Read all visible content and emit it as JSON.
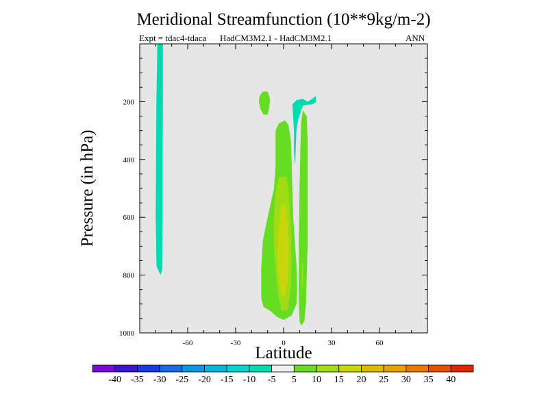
{
  "chart_data": {
    "type": "contour",
    "title": "Meridional Streamfunction (10**9kg/m-2)",
    "subtitle_left": "Expt = tdac4-tdaca",
    "subtitle_center": "HadCM3M2.1 - HadCM3M2.1",
    "subtitle_right": "ANN",
    "xlabel": "Latitude",
    "ylabel": "Pressure (in hPa)",
    "xlim": [
      -90,
      90
    ],
    "ylim": [
      1000,
      0
    ],
    "x_ticks": [
      "-60",
      "-30",
      "0",
      "30",
      "60"
    ],
    "x_tick_values": [
      -60,
      -30,
      0,
      30,
      60
    ],
    "y_ticks": [
      "200",
      "400",
      "600",
      "800",
      "1000"
    ],
    "y_tick_values": [
      200,
      400,
      600,
      800,
      1000
    ],
    "background_color": "#e6e6e6",
    "colorbar": {
      "labels": [
        "-40",
        "-35",
        "-30",
        "-25",
        "-20",
        "-15",
        "-10",
        "-5",
        "5",
        "10",
        "15",
        "20",
        "25",
        "30",
        "35",
        "40"
      ],
      "colors": [
        "#7a0ad8",
        "#3a16cc",
        "#1a3ae0",
        "#1a6ae6",
        "#0e98e2",
        "#08b4dc",
        "#0ad2d0",
        "#00dcb0",
        "#eeeeee",
        "#66dd22",
        "#a0dc14",
        "#c8d60a",
        "#dcbc00",
        "#e8a000",
        "#e87a00",
        "#e45000",
        "#dc2800"
      ]
    },
    "regions": [
      {
        "name": "neg-band-southern-high-lat",
        "level": "-10 to -5",
        "color": "#00dcb0",
        "points": [
          [
            -79,
            0
          ],
          [
            -75.5,
            0
          ],
          [
            -75.5,
            200
          ],
          [
            -75.7,
            400
          ],
          [
            -75.7,
            600
          ],
          [
            -76,
            780
          ],
          [
            -77,
            800
          ],
          [
            -79.5,
            770
          ],
          [
            -80,
            600
          ],
          [
            -79.8,
            400
          ],
          [
            -79.6,
            200
          ]
        ]
      },
      {
        "name": "neg-core-upper-tropics",
        "level": "-10 to -5",
        "color": "#00dcb0",
        "points": [
          [
            5.5,
            210
          ],
          [
            8,
            195
          ],
          [
            12,
            190
          ],
          [
            15,
            200
          ],
          [
            18,
            190
          ],
          [
            20,
            180
          ],
          [
            20.5,
            200
          ],
          [
            18,
            210
          ],
          [
            15,
            210
          ],
          [
            12,
            215
          ],
          [
            11,
            230
          ],
          [
            9,
            265
          ],
          [
            8,
            300
          ],
          [
            7.5,
            380
          ],
          [
            7,
            420
          ],
          [
            6.5,
            370
          ],
          [
            6.5,
            300
          ]
        ]
      },
      {
        "name": "pos-patch-upper-south",
        "level": "5 to 10",
        "color": "#66dd22",
        "points": [
          [
            -15,
            180
          ],
          [
            -13,
            165
          ],
          [
            -10,
            165
          ],
          [
            -8.5,
            190
          ],
          [
            -9,
            220
          ],
          [
            -10,
            245
          ],
          [
            -12.5,
            245
          ],
          [
            -14.5,
            225
          ],
          [
            -15.5,
            200
          ]
        ]
      },
      {
        "name": "pos-main-cell",
        "level": "5 to 10",
        "color": "#66dd22",
        "points": [
          [
            -5,
            300
          ],
          [
            -3,
            275
          ],
          [
            1,
            265
          ],
          [
            3,
            280
          ],
          [
            4.5,
            330
          ],
          [
            5,
            400
          ],
          [
            5.5,
            500
          ],
          [
            6,
            600
          ],
          [
            7,
            680
          ],
          [
            8,
            760
          ],
          [
            8.5,
            850
          ],
          [
            8,
            900
          ],
          [
            5,
            940
          ],
          [
            0,
            955
          ],
          [
            -4,
            945
          ],
          [
            -8,
            925
          ],
          [
            -12.5,
            910
          ],
          [
            -14,
            880
          ],
          [
            -14,
            780
          ],
          [
            -13,
            680
          ],
          [
            -10,
            600
          ],
          [
            -6,
            500
          ],
          [
            -5,
            420
          ],
          [
            -5,
            340
          ]
        ]
      },
      {
        "name": "pos-secondary-cell",
        "level": "5 to 10",
        "color": "#66dd22",
        "points": [
          [
            12,
            230
          ],
          [
            14.5,
            250
          ],
          [
            15,
            330
          ],
          [
            15,
            480
          ],
          [
            15,
            600
          ],
          [
            15,
            700
          ],
          [
            14.5,
            800
          ],
          [
            14,
            900
          ],
          [
            13,
            960
          ],
          [
            11,
            975
          ],
          [
            10,
            960
          ],
          [
            9.5,
            900
          ],
          [
            9.5,
            700
          ],
          [
            10,
            500
          ],
          [
            10.5,
            360
          ],
          [
            11,
            270
          ]
        ]
      },
      {
        "name": "pos-inner-cell",
        "level": "10 to 15",
        "color": "#a0dc14",
        "points": [
          [
            -3,
            460
          ],
          [
            2,
            460
          ],
          [
            3.5,
            520
          ],
          [
            4.5,
            620
          ],
          [
            5,
            720
          ],
          [
            4.5,
            850
          ],
          [
            2.5,
            920
          ],
          [
            -1,
            925
          ],
          [
            -3,
            880
          ],
          [
            -5,
            780
          ],
          [
            -6,
            700
          ],
          [
            -6,
            600
          ],
          [
            -5,
            520
          ]
        ]
      },
      {
        "name": "pos-secondary-inner",
        "level": "10 to 15",
        "color": "#a0dc14",
        "points": [
          [
            11.4,
            760
          ],
          [
            12.2,
            760
          ],
          [
            12.2,
            840
          ],
          [
            11.4,
            845
          ]
        ]
      },
      {
        "name": "pos-core",
        "level": "15 to 20",
        "color": "#c8d60a",
        "points": [
          [
            -1.5,
            560
          ],
          [
            1,
            555
          ],
          [
            2.5,
            620
          ],
          [
            3,
            720
          ],
          [
            2.5,
            830
          ],
          [
            0.5,
            875
          ],
          [
            -2,
            860
          ],
          [
            -3.5,
            780
          ],
          [
            -3.5,
            660
          ]
        ]
      }
    ]
  }
}
